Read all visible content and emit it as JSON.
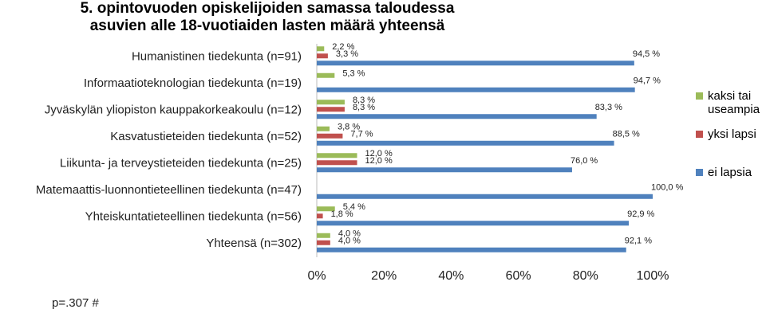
{
  "chart_data": {
    "type": "bar",
    "orientation": "horizontal",
    "title": "5. opintovuoden opiskelijoiden samassa taloudessa asuvien alle 18-vuotiaiden lasten määrä yhteensä",
    "note": "p=.307 #",
    "categories": [
      "Humanistinen tiedekunta (n=91)",
      "Informaatioteknologian tiedekunta (n=19)",
      "Jyväskylän yliopiston kauppakorkeakoulu (n=12)",
      "Kasvatustieteiden tiedekunta (n=52)",
      "Liikunta- ja terveystieteiden tiedekunta (n=25)",
      "Matemaattis-luonnontieteellinen tiedekunta (n=47)",
      "Yhteiskuntatieteellinen tiedekunta (n=56)",
      "Yhteensä (n=302)"
    ],
    "series": [
      {
        "name": "kaksi tai useampia",
        "color": "#9bbb59",
        "values": [
          2.2,
          5.3,
          8.3,
          3.8,
          12.0,
          null,
          5.4,
          4.0
        ],
        "value_labels": [
          "2,2 %",
          "5,3 %",
          "8,3 %",
          "3,8 %",
          "12,0 %",
          null,
          "5,4 %",
          "4,0 %"
        ]
      },
      {
        "name": "yksi lapsi",
        "color": "#c0504d",
        "values": [
          3.3,
          null,
          8.3,
          7.7,
          12.0,
          null,
          1.8,
          4.0
        ],
        "value_labels": [
          "3,3 %",
          null,
          "8,3 %",
          "7,7 %",
          "12,0 %",
          null,
          "1,8 %",
          "4,0 %"
        ]
      },
      {
        "name": "ei lapsia",
        "color": "#4f81bd",
        "values": [
          94.5,
          94.7,
          83.3,
          88.5,
          76.0,
          100.0,
          92.9,
          92.1
        ],
        "value_labels": [
          "94,5 %",
          "94,7 %",
          "83,3 %",
          "88,5 %",
          "76,0 %",
          "100,0 %",
          "92,9 %",
          "92,1 %"
        ]
      }
    ],
    "xlim": [
      0,
      100
    ],
    "xticks": [
      {
        "value": 0,
        "label": "0%"
      },
      {
        "value": 20,
        "label": "20%"
      },
      {
        "value": 40,
        "label": "40%"
      },
      {
        "value": 60,
        "label": "60%"
      },
      {
        "value": 80,
        "label": "80%"
      },
      {
        "value": 100,
        "label": "100%"
      }
    ],
    "legend": "right"
  }
}
